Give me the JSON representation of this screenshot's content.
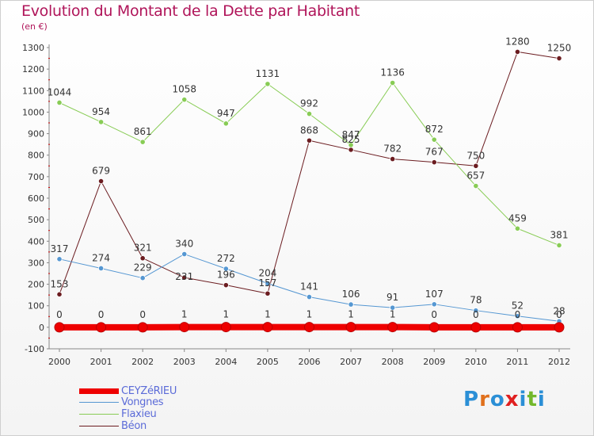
{
  "title": "Evolution du Montant de la Dette par Habitant",
  "subtitle": "(en €)",
  "logo": {
    "text": "Proxiti",
    "colors": [
      "#2b8fd6",
      "#e0701c",
      "#2b8fd6",
      "#e02020",
      "#2b8fd6",
      "#73b82b",
      "#2b8fd6"
    ]
  },
  "chart_data": {
    "type": "line",
    "title": "Evolution du Montant de la Dette par Habitant",
    "ylabel": "(en €)",
    "ylim": [
      -100,
      1300
    ],
    "yticks": [
      -100,
      0,
      100,
      200,
      300,
      400,
      500,
      600,
      700,
      800,
      900,
      1000,
      1100,
      1200,
      1300
    ],
    "x": [
      "2000",
      "2001",
      "2002",
      "2003",
      "2004",
      "2005",
      "2006",
      "2007",
      "2008",
      "2009",
      "2010",
      "2011",
      "2012"
    ],
    "grid": false,
    "legend_position": "bottom-left",
    "series": [
      {
        "name": "CEYZéRIEU",
        "color": "#ee0000",
        "width": 8,
        "values": [
          0,
          0,
          0,
          1,
          1,
          1,
          1,
          1,
          1,
          0,
          0,
          0,
          0
        ],
        "labels": [
          "0",
          "0",
          "0",
          "1",
          "1",
          "1",
          "1",
          "1",
          "1",
          "0",
          "0",
          "0",
          "0"
        ]
      },
      {
        "name": "Vongnes",
        "color": "#5597d2",
        "width": 1,
        "values": [
          317,
          274,
          229,
          340,
          272,
          204,
          141,
          106,
          91,
          107,
          78,
          52,
          28
        ],
        "labels": [
          "317",
          "274",
          "229",
          "340",
          "272",
          "204",
          "141",
          "106",
          "91",
          "107",
          "78",
          "52",
          "28"
        ]
      },
      {
        "name": "Flaxieu",
        "color": "#88cc55",
        "width": 1,
        "values": [
          1044,
          954,
          861,
          1058,
          947,
          1131,
          992,
          847,
          1136,
          872,
          657,
          459,
          381
        ],
        "labels": [
          "1044",
          "954",
          "861",
          "1058",
          "947",
          "1131",
          "992",
          "847",
          "1136",
          "872",
          "657",
          "459",
          "381"
        ]
      },
      {
        "name": "Béon",
        "color": "#6b1c20",
        "width": 1,
        "values": [
          153,
          679,
          321,
          231,
          196,
          157,
          868,
          825,
          782,
          767,
          750,
          1280,
          1250
        ],
        "labels": [
          "153",
          "679",
          "321",
          "",
          "196",
          "157",
          "868",
          "825",
          "782",
          "767",
          "750",
          "1280",
          "1250"
        ]
      }
    ]
  }
}
